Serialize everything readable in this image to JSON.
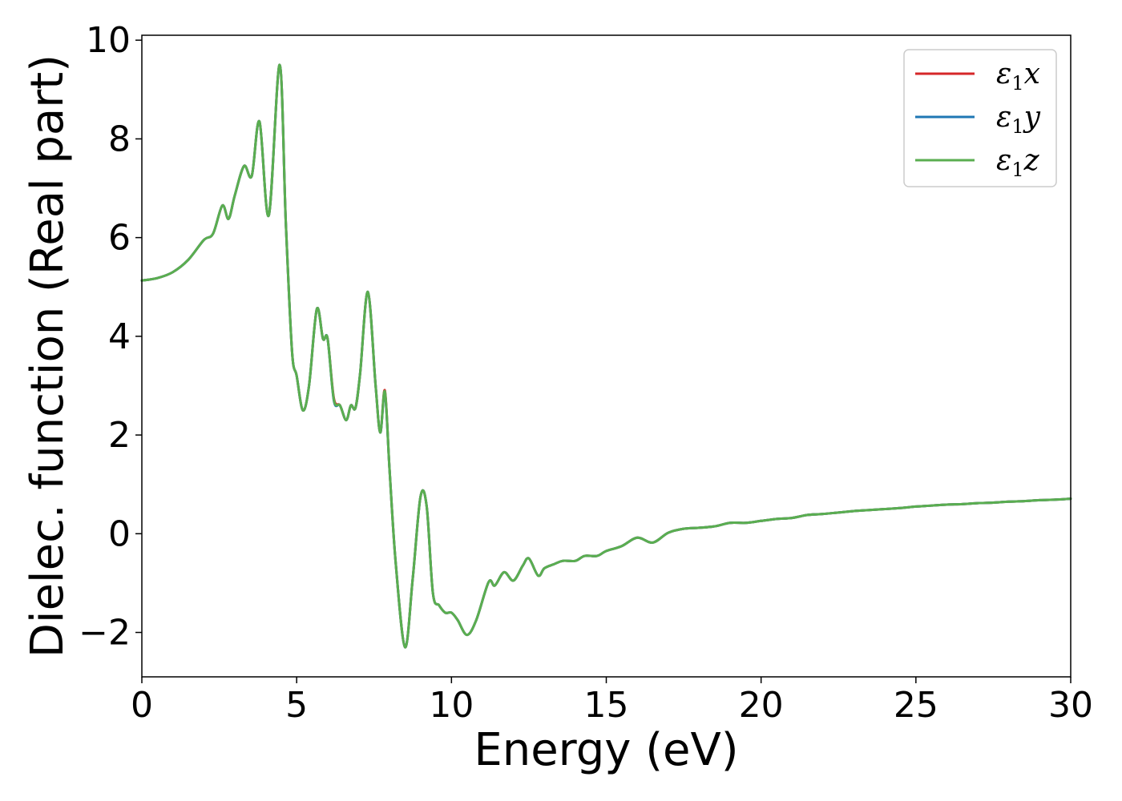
{
  "chart_data": {
    "type": "line",
    "title": "",
    "xlabel": "Energy (eV)",
    "ylabel": "Dielec. function (Real part)",
    "xlim": [
      0,
      30
    ],
    "ylim": [
      -2.9,
      10.1
    ],
    "xticks": [
      0,
      5,
      10,
      15,
      20,
      25,
      30
    ],
    "yticks": [
      -2,
      0,
      2,
      4,
      6,
      8,
      10
    ],
    "xtick_labels": [
      "0",
      "5",
      "10",
      "15",
      "20",
      "25",
      "30"
    ],
    "ytick_labels": [
      "−2",
      "0",
      "2",
      "4",
      "6",
      "8",
      "10"
    ],
    "grid": false,
    "legend_position": "top-right",
    "series": [
      {
        "name": "ε₁x",
        "legend_main": "ε",
        "legend_sub": "1",
        "legend_var": "x",
        "color": "#d62728",
        "x": [
          0,
          0.5,
          1,
          1.5,
          2,
          2.3,
          2.6,
          2.8,
          3.0,
          3.3,
          3.55,
          3.8,
          4.1,
          4.45,
          4.65,
          4.85,
          5.0,
          5.2,
          5.4,
          5.65,
          5.85,
          6.0,
          6.2,
          6.4,
          6.6,
          6.75,
          6.9,
          7.05,
          7.3,
          7.55,
          7.7,
          7.85,
          8.0,
          8.2,
          8.5,
          8.75,
          9.0,
          9.2,
          9.4,
          9.6,
          9.8,
          10.0,
          10.2,
          10.5,
          10.8,
          11.2,
          11.4,
          11.7,
          12.0,
          12.3,
          12.5,
          12.8,
          13.0,
          13.3,
          13.6,
          14.0,
          14.3,
          14.7,
          15.0,
          15.5,
          16.0,
          16.5,
          17.0,
          17.5,
          18.0,
          18.5,
          19.0,
          19.5,
          20.0,
          20.5,
          21.0,
          21.5,
          22.0,
          22.5,
          23.0,
          23.5,
          24.0,
          24.5,
          25.0,
          25.5,
          26.0,
          26.5,
          27.0,
          27.5,
          28.0,
          28.5,
          29.0,
          29.5,
          30.0
        ],
        "y": [
          5.13,
          5.18,
          5.3,
          5.55,
          5.95,
          6.08,
          6.65,
          6.38,
          6.85,
          7.45,
          7.25,
          8.35,
          6.45,
          9.5,
          6.3,
          3.7,
          3.2,
          2.5,
          3.0,
          4.55,
          3.95,
          3.95,
          2.75,
          2.6,
          2.3,
          2.6,
          2.55,
          3.25,
          4.9,
          3.0,
          2.05,
          2.9,
          1.3,
          -0.6,
          -2.3,
          -0.9,
          0.75,
          0.55,
          -1.2,
          -1.45,
          -1.6,
          -1.6,
          -1.75,
          -2.05,
          -1.75,
          -0.98,
          -1.05,
          -0.78,
          -0.95,
          -0.65,
          -0.5,
          -0.85,
          -0.7,
          -0.62,
          -0.55,
          -0.55,
          -0.45,
          -0.45,
          -0.35,
          -0.25,
          -0.08,
          -0.18,
          0.02,
          0.1,
          0.12,
          0.15,
          0.22,
          0.22,
          0.26,
          0.3,
          0.32,
          0.38,
          0.4,
          0.43,
          0.46,
          0.48,
          0.5,
          0.52,
          0.55,
          0.57,
          0.59,
          0.6,
          0.62,
          0.63,
          0.65,
          0.66,
          0.68,
          0.69,
          0.71
        ]
      },
      {
        "name": "ε₁y",
        "legend_main": "ε",
        "legend_sub": "1",
        "legend_var": "y",
        "color": "#1f77b4",
        "x": [
          0,
          0.5,
          1,
          1.5,
          2,
          2.3,
          2.6,
          2.8,
          3.0,
          3.3,
          3.55,
          3.8,
          4.1,
          4.45,
          4.65,
          4.85,
          5.0,
          5.2,
          5.4,
          5.65,
          5.85,
          6.0,
          6.2,
          6.4,
          6.6,
          6.75,
          6.9,
          7.05,
          7.3,
          7.55,
          7.7,
          7.85,
          8.0,
          8.2,
          8.5,
          8.75,
          9.0,
          9.2,
          9.4,
          9.6,
          9.8,
          10.0,
          10.2,
          10.5,
          10.8,
          11.2,
          11.4,
          11.7,
          12.0,
          12.3,
          12.5,
          12.8,
          13.0,
          13.3,
          13.6,
          14.0,
          14.3,
          14.7,
          15.0,
          15.5,
          16.0,
          16.5,
          17.0,
          17.5,
          18.0,
          18.5,
          19.0,
          19.5,
          20.0,
          20.5,
          21.0,
          21.5,
          22.0,
          22.5,
          23.0,
          23.5,
          24.0,
          24.5,
          25.0,
          25.5,
          26.0,
          26.5,
          27.0,
          27.5,
          28.0,
          28.5,
          29.0,
          29.5,
          30.0
        ],
        "y": [
          5.13,
          5.18,
          5.3,
          5.55,
          5.95,
          6.08,
          6.65,
          6.38,
          6.85,
          7.45,
          7.25,
          8.35,
          6.45,
          9.5,
          6.3,
          3.7,
          3.2,
          2.5,
          3.0,
          4.55,
          3.95,
          3.95,
          2.7,
          2.6,
          2.3,
          2.6,
          2.55,
          3.25,
          4.9,
          3.0,
          2.05,
          2.85,
          1.3,
          -0.6,
          -2.3,
          -0.9,
          0.75,
          0.55,
          -1.2,
          -1.45,
          -1.6,
          -1.6,
          -1.75,
          -2.05,
          -1.75,
          -0.98,
          -1.05,
          -0.78,
          -0.95,
          -0.65,
          -0.5,
          -0.85,
          -0.7,
          -0.62,
          -0.55,
          -0.55,
          -0.45,
          -0.45,
          -0.35,
          -0.25,
          -0.08,
          -0.18,
          0.02,
          0.1,
          0.12,
          0.15,
          0.22,
          0.22,
          0.26,
          0.3,
          0.32,
          0.38,
          0.4,
          0.43,
          0.46,
          0.48,
          0.5,
          0.52,
          0.55,
          0.57,
          0.59,
          0.6,
          0.62,
          0.63,
          0.65,
          0.66,
          0.68,
          0.69,
          0.71
        ]
      },
      {
        "name": "ε₁z",
        "legend_main": "ε",
        "legend_sub": "1",
        "legend_var": "z",
        "color": "#5aae50",
        "x": [
          0,
          0.5,
          1,
          1.5,
          2,
          2.3,
          2.6,
          2.8,
          3.0,
          3.3,
          3.55,
          3.8,
          4.1,
          4.45,
          4.65,
          4.85,
          5.0,
          5.2,
          5.4,
          5.65,
          5.85,
          6.0,
          6.2,
          6.4,
          6.6,
          6.75,
          6.9,
          7.05,
          7.3,
          7.55,
          7.7,
          7.85,
          8.0,
          8.2,
          8.5,
          8.75,
          9.0,
          9.2,
          9.4,
          9.6,
          9.8,
          10.0,
          10.2,
          10.5,
          10.8,
          11.2,
          11.4,
          11.7,
          12.0,
          12.3,
          12.5,
          12.8,
          13.0,
          13.3,
          13.6,
          14.0,
          14.3,
          14.7,
          15.0,
          15.5,
          16.0,
          16.5,
          17.0,
          17.5,
          18.0,
          18.5,
          19.0,
          19.5,
          20.0,
          20.5,
          21.0,
          21.5,
          22.0,
          22.5,
          23.0,
          23.5,
          24.0,
          24.5,
          25.0,
          25.5,
          26.0,
          26.5,
          27.0,
          27.5,
          28.0,
          28.5,
          29.0,
          29.5,
          30.0
        ],
        "y": [
          5.13,
          5.18,
          5.3,
          5.55,
          5.95,
          6.08,
          6.65,
          6.38,
          6.85,
          7.45,
          7.25,
          8.35,
          6.45,
          9.5,
          6.3,
          3.7,
          3.2,
          2.5,
          3.0,
          4.55,
          3.95,
          3.95,
          2.72,
          2.6,
          2.3,
          2.6,
          2.55,
          3.25,
          4.9,
          3.0,
          2.05,
          2.88,
          1.3,
          -0.6,
          -2.3,
          -0.9,
          0.75,
          0.55,
          -1.2,
          -1.45,
          -1.6,
          -1.6,
          -1.75,
          -2.05,
          -1.75,
          -0.98,
          -1.05,
          -0.78,
          -0.95,
          -0.65,
          -0.5,
          -0.85,
          -0.7,
          -0.62,
          -0.55,
          -0.55,
          -0.45,
          -0.45,
          -0.35,
          -0.25,
          -0.08,
          -0.18,
          0.02,
          0.1,
          0.12,
          0.15,
          0.22,
          0.22,
          0.26,
          0.3,
          0.32,
          0.38,
          0.4,
          0.43,
          0.46,
          0.48,
          0.5,
          0.52,
          0.55,
          0.57,
          0.59,
          0.6,
          0.62,
          0.63,
          0.65,
          0.66,
          0.68,
          0.69,
          0.71
        ]
      }
    ]
  }
}
